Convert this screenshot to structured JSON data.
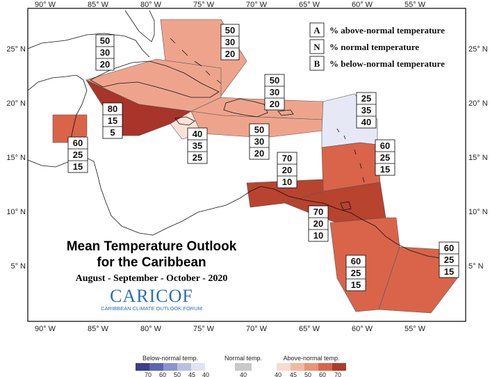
{
  "title": {
    "line1": "Mean Temperature Outlook",
    "line2": "for the Caribbean",
    "period": "August - September - October - 2020"
  },
  "logo": {
    "name": "CARICOF",
    "subtitle": "CARIBBEAN CLIMATE OUTLOOK FORUM"
  },
  "legend": [
    {
      "key": "A",
      "text": "% above-normal temperature"
    },
    {
      "key": "N",
      "text": "% normal temperature"
    },
    {
      "key": "B",
      "text": "% below-normal temperature"
    }
  ],
  "axes": {
    "x_labels": [
      "90° W",
      "85° W",
      "80° W",
      "75° W",
      "70° W",
      "65° W",
      "60° W",
      "55° W"
    ],
    "y_labels": [
      "25° N",
      "20° N",
      "15° N",
      "10° N",
      "5° N"
    ]
  },
  "colorbars": {
    "below": {
      "title": "Below-normal temp.",
      "ticks": [
        "70",
        "60",
        "50",
        "45",
        "40"
      ],
      "colors": [
        "#3b3f8c",
        "#5a67b0",
        "#8a95cd",
        "#b8c0e2",
        "#dfe3f2"
      ]
    },
    "normal": {
      "title": "Normal temp.",
      "ticks": [
        "40"
      ],
      "colors": [
        "#c9c9c9"
      ]
    },
    "above": {
      "title": "Above-normal temp.",
      "ticks": [
        "40",
        "45",
        "50",
        "60",
        "70"
      ],
      "colors": [
        "#f6dbd0",
        "#f1b9a4",
        "#e89479",
        "#d9644a",
        "#b03a2a"
      ]
    }
  },
  "colors": {
    "above_50": "#eea48c",
    "above_60": "#d9644a",
    "above_70": "#b8432f",
    "above_80": "#a8342a",
    "above_40": "#fbe2d8",
    "below_40": "#e6e9f5",
    "land": "#ffffff"
  },
  "regions": [
    {
      "id": "bahamas",
      "A": "50",
      "N": "30",
      "B": "20"
    },
    {
      "id": "cuba",
      "A": "50",
      "N": "30",
      "B": "20"
    },
    {
      "id": "cuba-south",
      "A": "80",
      "N": "15",
      "B": "5"
    },
    {
      "id": "jamaica",
      "A": "40",
      "N": "35",
      "B": "25"
    },
    {
      "id": "hispaniola-north",
      "A": "50",
      "N": "30",
      "B": "20"
    },
    {
      "id": "hispaniola-south",
      "A": "50",
      "N": "30",
      "B": "20"
    },
    {
      "id": "belize",
      "A": "60",
      "N": "25",
      "B": "15"
    },
    {
      "id": "leeward-islands",
      "A": "25",
      "N": "35",
      "B": "40"
    },
    {
      "id": "eastern-caribbean",
      "A": "60",
      "N": "25",
      "B": "15"
    },
    {
      "id": "abc-islands",
      "A": "70",
      "N": "20",
      "B": "10"
    },
    {
      "id": "trinidad",
      "A": "70",
      "N": "20",
      "B": "10"
    },
    {
      "id": "guyana",
      "A": "60",
      "N": "25",
      "B": "15"
    },
    {
      "id": "suriname-guiana",
      "A": "60",
      "N": "25",
      "B": "15"
    }
  ]
}
